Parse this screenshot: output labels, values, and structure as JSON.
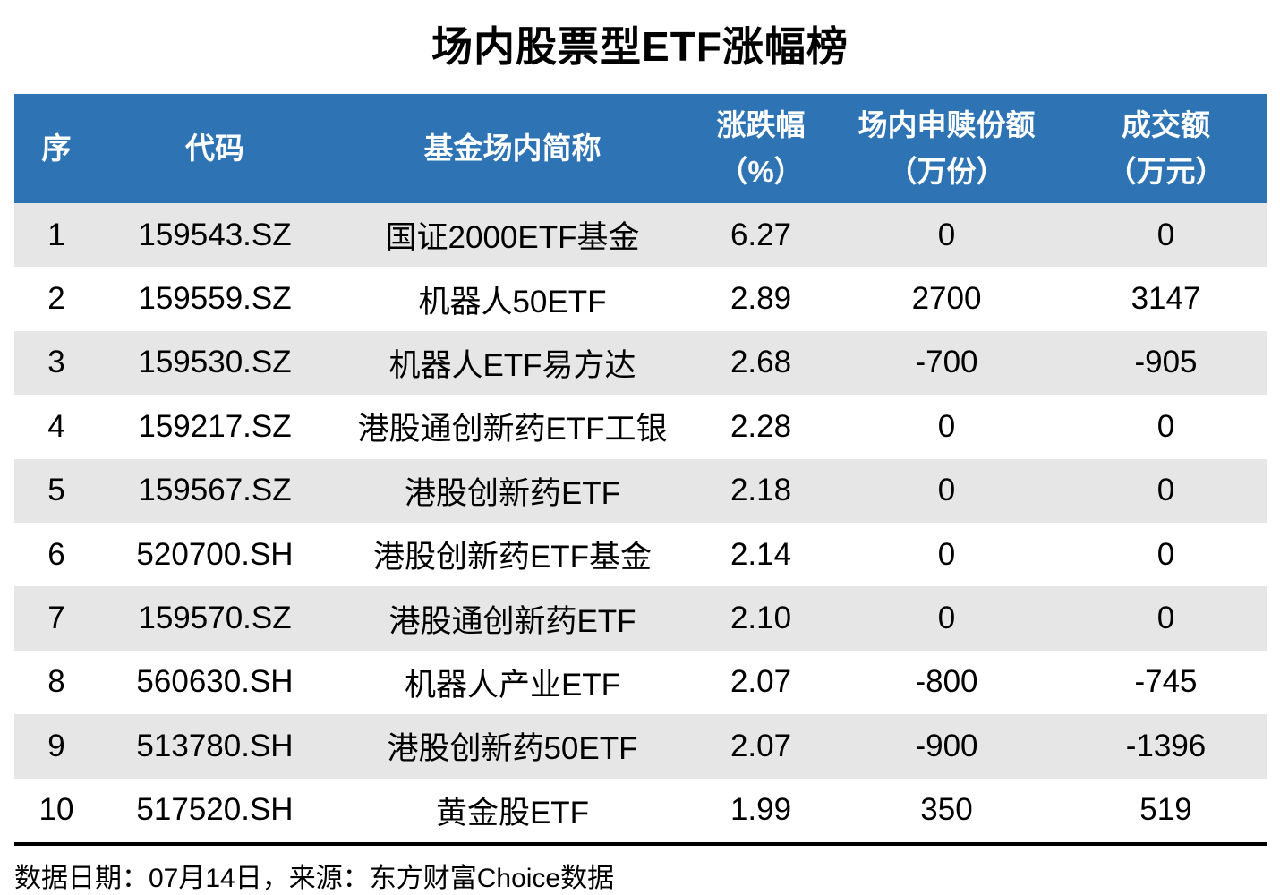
{
  "title": "场内股票型ETF涨幅榜",
  "chart_data": {
    "type": "table",
    "title": "场内股票型ETF涨幅榜",
    "columns": [
      {
        "line1": "序",
        "line2": ""
      },
      {
        "line1": "代码",
        "line2": ""
      },
      {
        "line1": "基金场内简称",
        "line2": ""
      },
      {
        "line1": "涨跌幅",
        "line2": "（%）"
      },
      {
        "line1": "场内申赎份额",
        "line2": "（万份）"
      },
      {
        "line1": "成交额",
        "line2": "（万元）"
      }
    ],
    "column_keys": [
      "no",
      "code",
      "name",
      "chg",
      "shares",
      "turnover"
    ],
    "rows": [
      {
        "no": "1",
        "code": "159543.SZ",
        "name": "国证2000ETF基金",
        "chg": "6.27",
        "shares": "0",
        "turnover": "0"
      },
      {
        "no": "2",
        "code": "159559.SZ",
        "name": "机器人50ETF",
        "chg": "2.89",
        "shares": "2700",
        "turnover": "3147"
      },
      {
        "no": "3",
        "code": "159530.SZ",
        "name": "机器人ETF易方达",
        "chg": "2.68",
        "shares": "-700",
        "turnover": "-905"
      },
      {
        "no": "4",
        "code": "159217.SZ",
        "name": "港股通创新药ETF工银",
        "chg": "2.28",
        "shares": "0",
        "turnover": "0"
      },
      {
        "no": "5",
        "code": "159567.SZ",
        "name": "港股创新药ETF",
        "chg": "2.18",
        "shares": "0",
        "turnover": "0"
      },
      {
        "no": "6",
        "code": "520700.SH",
        "name": "港股创新药ETF基金",
        "chg": "2.14",
        "shares": "0",
        "turnover": "0"
      },
      {
        "no": "7",
        "code": "159570.SZ",
        "name": "港股通创新药ETF",
        "chg": "2.10",
        "shares": "0",
        "turnover": "0"
      },
      {
        "no": "8",
        "code": "560630.SH",
        "name": "机器人产业ETF",
        "chg": "2.07",
        "shares": "-800",
        "turnover": "-745"
      },
      {
        "no": "9",
        "code": "513780.SH",
        "name": "港股创新药50ETF",
        "chg": "2.07",
        "shares": "-900",
        "turnover": "-1396"
      },
      {
        "no": "10",
        "code": "517520.SH",
        "name": "黄金股ETF",
        "chg": "1.99",
        "shares": "350",
        "turnover": "519"
      }
    ],
    "styles": {
      "header_bg": "#2E74B5",
      "header_text": "#FFFFFF",
      "band_bg": "#E7E6E6",
      "row_bg": "#FFFFFF",
      "text_color": "#000000"
    },
    "layout_hints": {
      "banded_rows": true,
      "first_banded": true,
      "grid": false
    }
  },
  "footer": {
    "text": "数据日期：07月14日，来源：东方财富Choice数据"
  }
}
